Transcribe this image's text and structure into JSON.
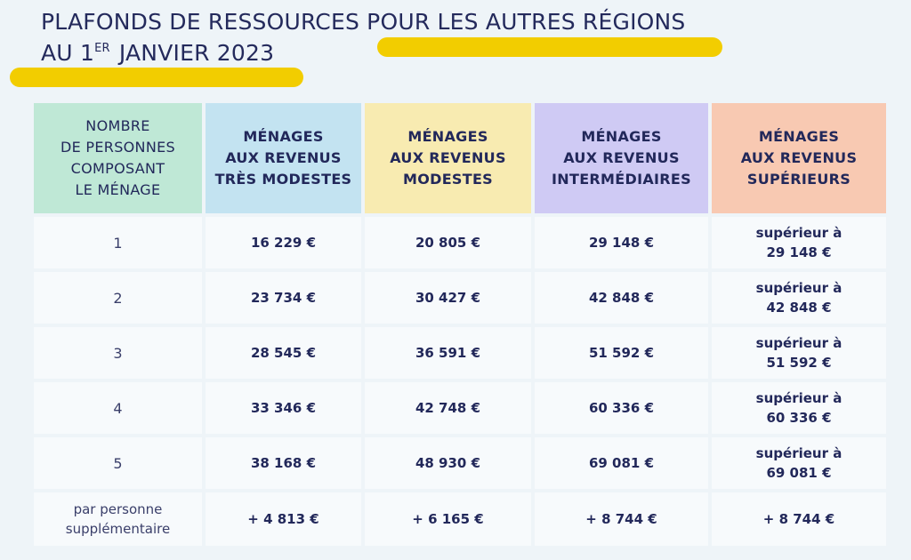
{
  "title": {
    "line1": "PLAFONDS DE RESSOURCES POUR LES AUTRES RÉGIONS",
    "line2_prefix": "AU 1",
    "line2_sup": "ER",
    "line2_suffix": " JANVIER 2023",
    "highlight_color": "#f2cd00"
  },
  "table": {
    "headers": [
      [
        "NOMBRE",
        "DE PERSONNES",
        "COMPOSANT",
        "LE MÉNAGE"
      ],
      [
        "MÉNAGES",
        "AUX REVENUS",
        "TRÈS MODESTES"
      ],
      [
        "MÉNAGES",
        "AUX REVENUS",
        "MODESTES"
      ],
      [
        "MÉNAGES",
        "AUX REVENUS",
        "INTERMÉDIAIRES"
      ],
      [
        "MÉNAGES",
        "AUX REVENUS",
        "SUPÉRIEURS"
      ]
    ],
    "header_colors": [
      "#bfe8d6",
      "#c3e3f1",
      "#f8ebb1",
      "#cfcaf4",
      "#f8c9b2"
    ],
    "rows": [
      {
        "persons": "1",
        "tres_modestes": "16 229 €",
        "modestes": "20 805 €",
        "intermediaires": "29 148 €",
        "superieurs_1": "supérieur à",
        "superieurs_2": "29 148 €"
      },
      {
        "persons": "2",
        "tres_modestes": "23 734 €",
        "modestes": "30 427 €",
        "intermediaires": "42 848 €",
        "superieurs_1": "supérieur à",
        "superieurs_2": "42 848 €"
      },
      {
        "persons": "3",
        "tres_modestes": "28 545 €",
        "modestes": "36 591 €",
        "intermediaires": "51 592 €",
        "superieurs_1": "supérieur à",
        "superieurs_2": "51 592 €"
      },
      {
        "persons": "4",
        "tres_modestes": "33 346 €",
        "modestes": "42 748 €",
        "intermediaires": "60 336 €",
        "superieurs_1": "supérieur à",
        "superieurs_2": "60 336 €"
      },
      {
        "persons": "5",
        "tres_modestes": "38 168 €",
        "modestes": "48 930 €",
        "intermediaires": "69 081 €",
        "superieurs_1": "supérieur à",
        "superieurs_2": "69 081 €"
      }
    ],
    "extra": {
      "label_1": "par personne",
      "label_2": "supplémentaire",
      "tres_modestes": "+ 4 813 €",
      "modestes": "+ 6 165 €",
      "intermediaires": "+ 8 744 €",
      "superieurs": "+ 8 744 €"
    }
  }
}
